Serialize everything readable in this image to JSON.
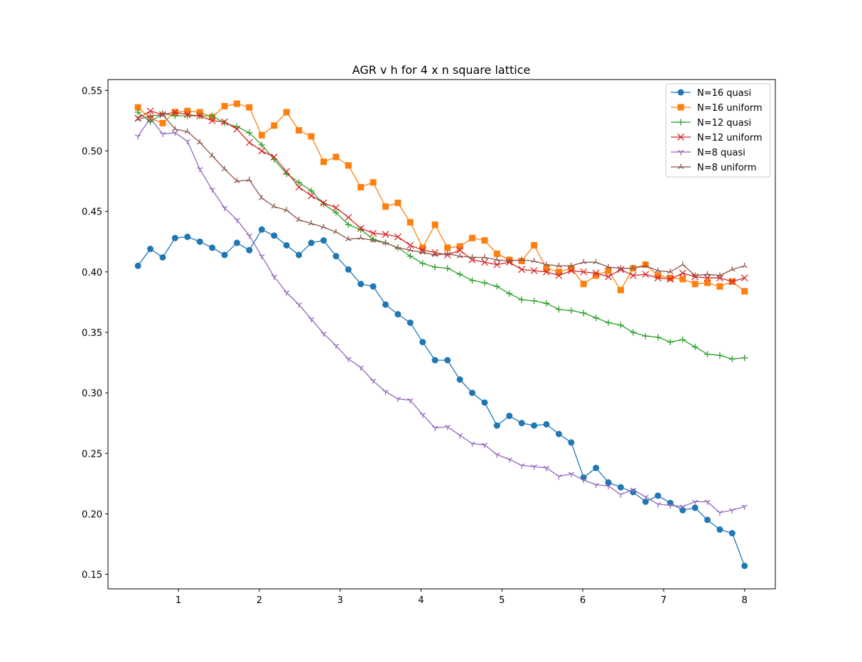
{
  "chart_data": {
    "type": "line",
    "title": "AGR v h for 4 x n square lattice",
    "xlabel": "",
    "ylabel": "",
    "xlim": [
      0.13,
      8.38
    ],
    "ylim": [
      0.138,
      0.559
    ],
    "xticks": [
      1,
      2,
      3,
      4,
      5,
      6,
      7,
      8
    ],
    "xtick_labels": [
      "1",
      "2",
      "3",
      "4",
      "5",
      "6",
      "7",
      "8"
    ],
    "yticks": [
      0.15,
      0.2,
      0.25,
      0.3,
      0.35,
      0.4,
      0.45,
      0.5,
      0.55
    ],
    "ytick_labels": [
      "0.15",
      "0.20",
      "0.25",
      "0.30",
      "0.35",
      "0.40",
      "0.45",
      "0.50",
      "0.55"
    ],
    "grid": false,
    "legend_position": "top-right",
    "x": [
      0.5,
      0.653,
      0.806,
      0.959,
      1.112,
      1.265,
      1.418,
      1.571,
      1.724,
      1.877,
      2.031,
      2.184,
      2.337,
      2.49,
      2.643,
      2.796,
      2.949,
      3.102,
      3.255,
      3.408,
      3.561,
      3.714,
      3.867,
      4.02,
      4.173,
      4.327,
      4.48,
      4.633,
      4.786,
      4.939,
      5.092,
      5.245,
      5.398,
      5.551,
      5.704,
      5.857,
      6.01,
      6.163,
      6.316,
      6.469,
      6.622,
      6.776,
      6.929,
      7.082,
      7.235,
      7.388,
      7.541,
      7.694,
      7.847,
      8.0
    ],
    "series": [
      {
        "name": "N=16 quasi",
        "color": "#1f77b4",
        "marker": "circle",
        "values": [
          0.405,
          0.419,
          0.412,
          0.428,
          0.429,
          0.425,
          0.42,
          0.414,
          0.424,
          0.418,
          0.435,
          0.43,
          0.422,
          0.414,
          0.424,
          0.426,
          0.413,
          0.402,
          0.39,
          0.388,
          0.373,
          0.365,
          0.358,
          0.342,
          0.327,
          0.327,
          0.311,
          0.3,
          0.292,
          0.273,
          0.281,
          0.275,
          0.273,
          0.274,
          0.266,
          0.259,
          0.23,
          0.238,
          0.226,
          0.222,
          0.218,
          0.21,
          0.215,
          0.209,
          0.203,
          0.205,
          0.195,
          0.187,
          0.184,
          0.157
        ]
      },
      {
        "name": "N=16 uniform",
        "color": "#ff7f0e",
        "marker": "square",
        "values": [
          0.536,
          0.527,
          0.523,
          0.532,
          0.533,
          0.532,
          0.528,
          0.537,
          0.539,
          0.536,
          0.513,
          0.521,
          0.532,
          0.517,
          0.512,
          0.491,
          0.495,
          0.488,
          0.47,
          0.474,
          0.454,
          0.457,
          0.441,
          0.42,
          0.439,
          0.42,
          0.421,
          0.428,
          0.426,
          0.415,
          0.41,
          0.409,
          0.422,
          0.403,
          0.4,
          0.403,
          0.39,
          0.397,
          0.401,
          0.385,
          0.403,
          0.406,
          0.397,
          0.395,
          0.394,
          0.39,
          0.391,
          0.388,
          0.392,
          0.384
        ]
      },
      {
        "name": "N=12 quasi",
        "color": "#2ca02c",
        "marker": "plus",
        "values": [
          0.532,
          0.524,
          0.531,
          0.529,
          0.529,
          0.529,
          0.529,
          0.523,
          0.52,
          0.515,
          0.505,
          0.493,
          0.481,
          0.474,
          0.467,
          0.456,
          0.449,
          0.439,
          0.435,
          0.427,
          0.424,
          0.42,
          0.413,
          0.407,
          0.404,
          0.403,
          0.398,
          0.393,
          0.391,
          0.388,
          0.382,
          0.377,
          0.376,
          0.374,
          0.369,
          0.368,
          0.366,
          0.362,
          0.358,
          0.356,
          0.35,
          0.347,
          0.346,
          0.342,
          0.344,
          0.338,
          0.332,
          0.331,
          0.328,
          0.329
        ]
      },
      {
        "name": "N=12 uniform",
        "color": "#d62728",
        "marker": "x",
        "values": [
          0.527,
          0.533,
          0.53,
          0.532,
          0.53,
          0.529,
          0.525,
          0.524,
          0.518,
          0.507,
          0.5,
          0.495,
          0.483,
          0.47,
          0.463,
          0.457,
          0.453,
          0.445,
          0.436,
          0.432,
          0.431,
          0.429,
          0.422,
          0.418,
          0.416,
          0.414,
          0.418,
          0.41,
          0.408,
          0.406,
          0.408,
          0.402,
          0.401,
          0.4,
          0.397,
          0.401,
          0.4,
          0.399,
          0.396,
          0.402,
          0.397,
          0.398,
          0.395,
          0.394,
          0.399,
          0.396,
          0.395,
          0.395,
          0.392,
          0.395
        ]
      },
      {
        "name": "N=8 quasi",
        "color": "#9467bd",
        "marker": "tri-down",
        "values": [
          0.512,
          0.527,
          0.514,
          0.515,
          0.508,
          0.485,
          0.468,
          0.453,
          0.443,
          0.43,
          0.413,
          0.396,
          0.383,
          0.373,
          0.361,
          0.349,
          0.339,
          0.328,
          0.321,
          0.31,
          0.301,
          0.295,
          0.294,
          0.282,
          0.271,
          0.272,
          0.265,
          0.258,
          0.257,
          0.249,
          0.245,
          0.24,
          0.239,
          0.238,
          0.231,
          0.233,
          0.228,
          0.224,
          0.223,
          0.216,
          0.22,
          0.214,
          0.208,
          0.207,
          0.206,
          0.21,
          0.21,
          0.201,
          0.203,
          0.206
        ]
      },
      {
        "name": "N=8 uniform",
        "color": "#8c564b",
        "marker": "tri-up",
        "values": [
          0.526,
          0.529,
          0.53,
          0.518,
          0.516,
          0.507,
          0.496,
          0.485,
          0.475,
          0.476,
          0.461,
          0.454,
          0.451,
          0.443,
          0.44,
          0.437,
          0.433,
          0.427,
          0.428,
          0.426,
          0.424,
          0.42,
          0.418,
          0.416,
          0.414,
          0.415,
          0.413,
          0.412,
          0.412,
          0.41,
          0.409,
          0.41,
          0.409,
          0.406,
          0.405,
          0.405,
          0.408,
          0.408,
          0.404,
          0.403,
          0.403,
          0.405,
          0.401,
          0.4,
          0.406,
          0.397,
          0.398,
          0.397,
          0.402,
          0.405
        ]
      }
    ]
  }
}
